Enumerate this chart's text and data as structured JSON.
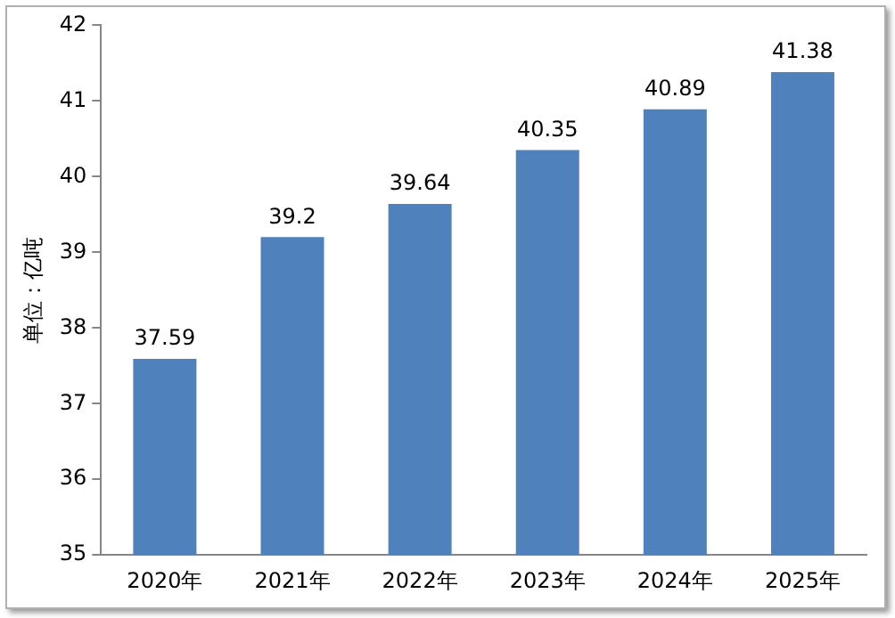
{
  "chart_data": {
    "type": "bar",
    "ylabel": "单位：亿吨",
    "categories": [
      "2020年",
      "2021年",
      "2022年",
      "2023年",
      "2024年",
      "2025年"
    ],
    "values": [
      37.59,
      39.2,
      39.64,
      40.35,
      40.89,
      41.38
    ],
    "color": "#4f81bd",
    "ylim": [
      35,
      42
    ],
    "yticks": [
      35,
      36,
      37,
      38,
      39,
      40,
      41,
      42
    ],
    "data_labels": true,
    "grid": false,
    "legend": false
  }
}
